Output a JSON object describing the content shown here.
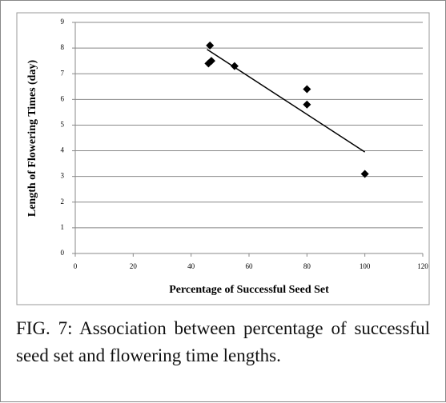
{
  "chart_data": {
    "type": "scatter",
    "x_label": "Percentage of Successful Seed Set",
    "y_label": "Length of Flowering Times (day)",
    "x": [
      46.5,
      46,
      47,
      55,
      80,
      80,
      100
    ],
    "values": [
      8.1,
      7.4,
      7.5,
      7.3,
      6.4,
      5.8,
      3.1
    ],
    "color": "#000000",
    "trendline": {
      "x": [
        45.5,
        100
      ],
      "y": [
        7.95,
        3.95
      ]
    },
    "xlim": [
      0,
      120
    ],
    "xticks": [
      0,
      20,
      40,
      60,
      80,
      100,
      120
    ],
    "ylim": [
      0,
      9
    ],
    "yticks": [
      0,
      1,
      2,
      3,
      4,
      5,
      6,
      7,
      8,
      9
    ],
    "grid": true
  },
  "caption": "FIG. 7: Association between percentage of successful seed set and flowering time lengths."
}
